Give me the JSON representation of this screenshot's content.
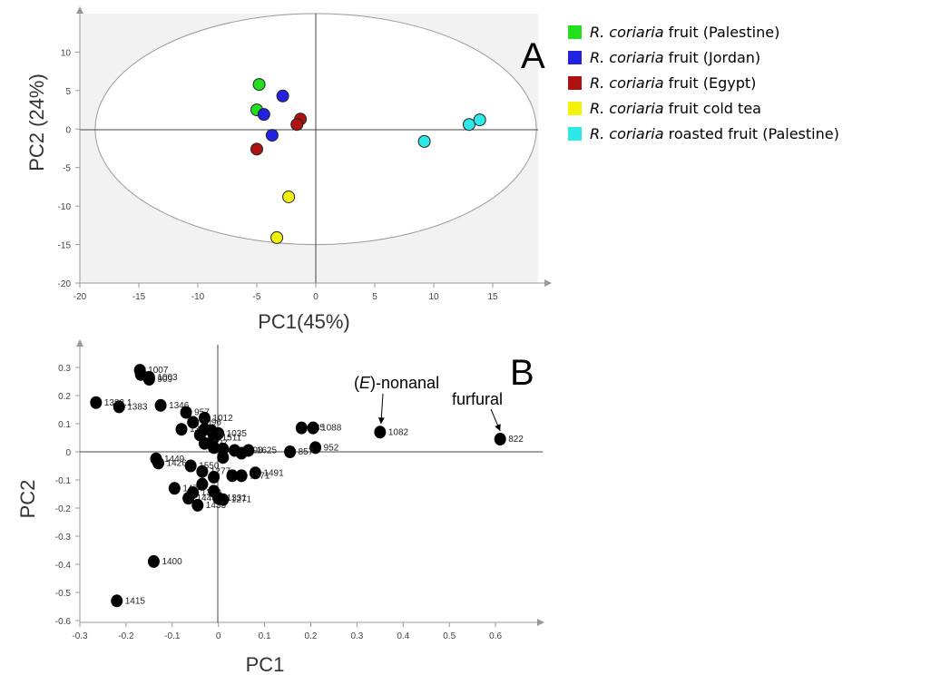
{
  "chart_data": [
    {
      "type": "scatter",
      "panel": "A",
      "xlabel": "PC1(45%)",
      "ylabel": "PC2 (24%)",
      "xlim": [
        -20,
        20
      ],
      "ylim": [
        -20,
        15
      ],
      "xticks": [
        -20,
        -15,
        -10,
        -5,
        0,
        5,
        10,
        15
      ],
      "yticks": [
        10,
        5,
        0,
        -5,
        -10,
        -15,
        -20
      ],
      "background": "#f2f2f2",
      "confidence_ellipse": {
        "cx": 0,
        "cy": 0,
        "rx": 18.7,
        "ry": 15
      },
      "legend_position": "right",
      "series": [
        {
          "name": "fruit (Palestine)",
          "species": "R. coriaria",
          "color": "#22e01e",
          "points": [
            [
              -4.8,
              5.8
            ],
            [
              -5.0,
              2.5
            ]
          ]
        },
        {
          "name": "fruit (Jordan)",
          "species": "R. coriaria",
          "color": "#2222e0",
          "points": [
            [
              -2.8,
              4.3
            ],
            [
              -4.4,
              1.9
            ],
            [
              -3.7,
              -0.8
            ]
          ]
        },
        {
          "name": "fruit (Egypt)",
          "species": "R. coriaria",
          "color": "#b01212",
          "points": [
            [
              -1.3,
              1.3
            ],
            [
              -1.6,
              0.6
            ],
            [
              -5.0,
              -2.6
            ]
          ]
        },
        {
          "name": "fruit cold tea",
          "species": "R. coriaria",
          "color": "#f2f20a",
          "points": [
            [
              -2.3,
              -8.8
            ],
            [
              -3.3,
              -14.1
            ]
          ]
        },
        {
          "name": "roasted fruit (Palestine)",
          "species": "R. coriaria",
          "color": "#2ee8e8",
          "points": [
            [
              9.2,
              -1.6
            ],
            [
              13.0,
              0.6
            ],
            [
              13.9,
              1.2
            ]
          ]
        }
      ]
    },
    {
      "type": "scatter",
      "panel": "B",
      "xlabel": "PC1",
      "ylabel": "PC2",
      "xlim": [
        -0.3,
        0.7
      ],
      "ylim": [
        -0.6,
        0.35
      ],
      "xticks": [
        -0.3,
        -0.2,
        -0.1,
        0,
        0.1,
        0.2,
        0.3,
        0.4,
        0.5,
        0.6
      ],
      "yticks": [
        0.3,
        0.2,
        0.1,
        0,
        -0.1,
        -0.2,
        -0.3,
        -0.4,
        -0.5,
        -0.6
      ],
      "point_color": "#000000",
      "points": [
        {
          "label": "1007",
          "x": -0.17,
          "y": 0.29
        },
        {
          "label": "",
          "x": -0.168,
          "y": 0.275
        },
        {
          "label": "1003",
          "x": -0.15,
          "y": 0.265
        },
        {
          "label": "909",
          "x": -0.15,
          "y": 0.258
        },
        {
          "label": "1383.1",
          "x": -0.265,
          "y": 0.175
        },
        {
          "label": "1383",
          "x": -0.215,
          "y": 0.16
        },
        {
          "label": "1346",
          "x": -0.125,
          "y": 0.165
        },
        {
          "label": "957",
          "x": -0.07,
          "y": 0.14
        },
        {
          "label": "1012",
          "x": -0.03,
          "y": 0.12
        },
        {
          "label": "1096",
          "x": -0.055,
          "y": 0.105
        },
        {
          "label": "1353",
          "x": -0.08,
          "y": 0.08
        },
        {
          "label": "",
          "x": -0.03,
          "y": 0.08
        },
        {
          "label": "",
          "x": -0.015,
          "y": 0.075
        },
        {
          "label": "1035",
          "x": 0.0,
          "y": 0.065
        },
        {
          "label": "993",
          "x": -0.04,
          "y": 0.06
        },
        {
          "label": "1511",
          "x": -0.01,
          "y": 0.05
        },
        {
          "label": "927",
          "x": -0.03,
          "y": 0.03
        },
        {
          "label": "",
          "x": -0.01,
          "y": 0.015
        },
        {
          "label": "",
          "x": 0.01,
          "y": 0.01
        },
        {
          "label": "1498",
          "x": 0.035,
          "y": 0.005
        },
        {
          "label": "",
          "x": 0.05,
          "y": -0.005
        },
        {
          "label": "1625",
          "x": 0.065,
          "y": 0.005
        },
        {
          "label": "",
          "x": 0.01,
          "y": -0.02
        },
        {
          "label": "935",
          "x": 0.18,
          "y": 0.085
        },
        {
          "label": "1088",
          "x": 0.205,
          "y": 0.085
        },
        {
          "label": "952",
          "x": 0.21,
          "y": 0.015
        },
        {
          "label": "857",
          "x": 0.155,
          "y": 0.0
        },
        {
          "label": "1449",
          "x": -0.135,
          "y": -0.025
        },
        {
          "label": "1426",
          "x": -0.13,
          "y": -0.04
        },
        {
          "label": "1550",
          "x": -0.06,
          "y": -0.05
        },
        {
          "label": "1277",
          "x": -0.035,
          "y": -0.07
        },
        {
          "label": "",
          "x": -0.01,
          "y": -0.09
        },
        {
          "label": "",
          "x": 0.03,
          "y": -0.085
        },
        {
          "label": "1491",
          "x": 0.08,
          "y": -0.075
        },
        {
          "label": "1571",
          "x": 0.05,
          "y": -0.085
        },
        {
          "label": "1474",
          "x": -0.095,
          "y": -0.13
        },
        {
          "label": "1360",
          "x": -0.055,
          "y": -0.145
        },
        {
          "label": "",
          "x": -0.035,
          "y": -0.115
        },
        {
          "label": "1446",
          "x": -0.065,
          "y": -0.165
        },
        {
          "label": "1433",
          "x": -0.045,
          "y": -0.19
        },
        {
          "label": "",
          "x": -0.01,
          "y": -0.14
        },
        {
          "label": "1331",
          "x": 0.0,
          "y": -0.165
        },
        {
          "label": "1271",
          "x": 0.01,
          "y": -0.17
        },
        {
          "label": "1400",
          "x": -0.14,
          "y": -0.39
        },
        {
          "label": "1415",
          "x": -0.22,
          "y": -0.53
        },
        {
          "label": "1082",
          "x": 0.35,
          "y": 0.07
        },
        {
          "label": "822",
          "x": 0.61,
          "y": 0.045
        }
      ],
      "annotations": [
        {
          "text_prefix": "(",
          "text_italic": "E",
          "text_suffix": ")-nonanal",
          "target": "1082"
        },
        {
          "text": "furfural",
          "target": "822"
        }
      ]
    }
  ],
  "panel_labels": {
    "a": "A",
    "b": "B"
  },
  "legend_species": "R. coriaria"
}
